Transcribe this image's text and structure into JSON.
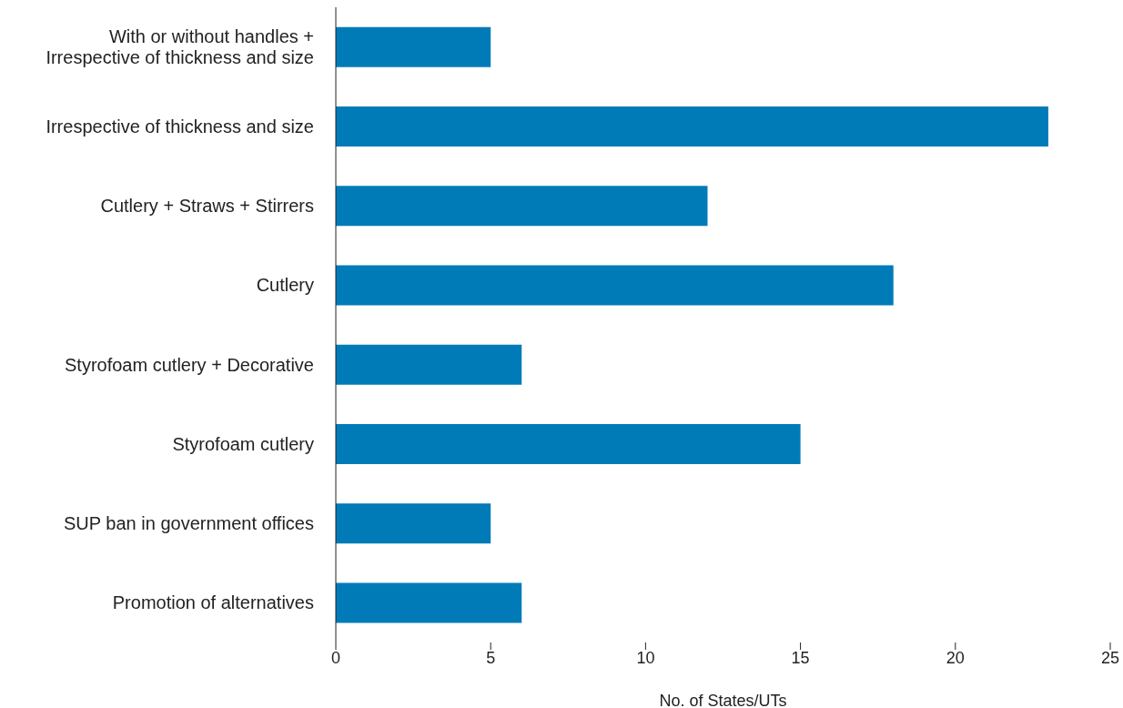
{
  "chart_data": {
    "type": "bar",
    "orientation": "horizontal",
    "xlabel": "No. of States/UTs",
    "categories": [
      "With or without handles + Irrespective of thickness and size",
      "Irrespective of thickness and size",
      "Cutlery + Straws + Stirrers",
      "Cutlery",
      "Styrofoam cutlery + Decorative",
      "Styrofoam cutlery",
      "SUP ban in government offices",
      "Promotion of alternatives"
    ],
    "values": [
      5,
      23,
      12,
      18,
      6,
      15,
      5,
      6
    ],
    "color": "#007bb8",
    "xlim": [
      0,
      25
    ],
    "xticks": [
      0,
      5,
      10,
      15,
      20,
      25
    ]
  }
}
